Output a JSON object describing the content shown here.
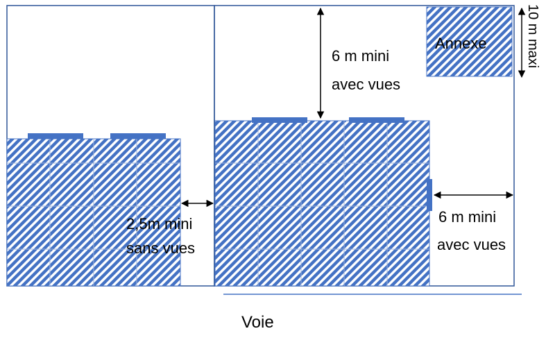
{
  "labels": {
    "annexe": "Annexe",
    "top_distance_line1": "6 m mini",
    "top_distance_line2": "avec vues",
    "annex_height": "10 m maxi",
    "left_gap_line1": "2,5m mini",
    "left_gap_line2": "sans vues",
    "right_gap_line1": "6 m mini",
    "right_gap_line2": "avec vues",
    "road": "Voie"
  },
  "colors": {
    "outline": "#2f5597",
    "fill": "#4472c4",
    "hatch_bg": "#ffffff",
    "arrow": "#000000",
    "text": "#000000"
  }
}
